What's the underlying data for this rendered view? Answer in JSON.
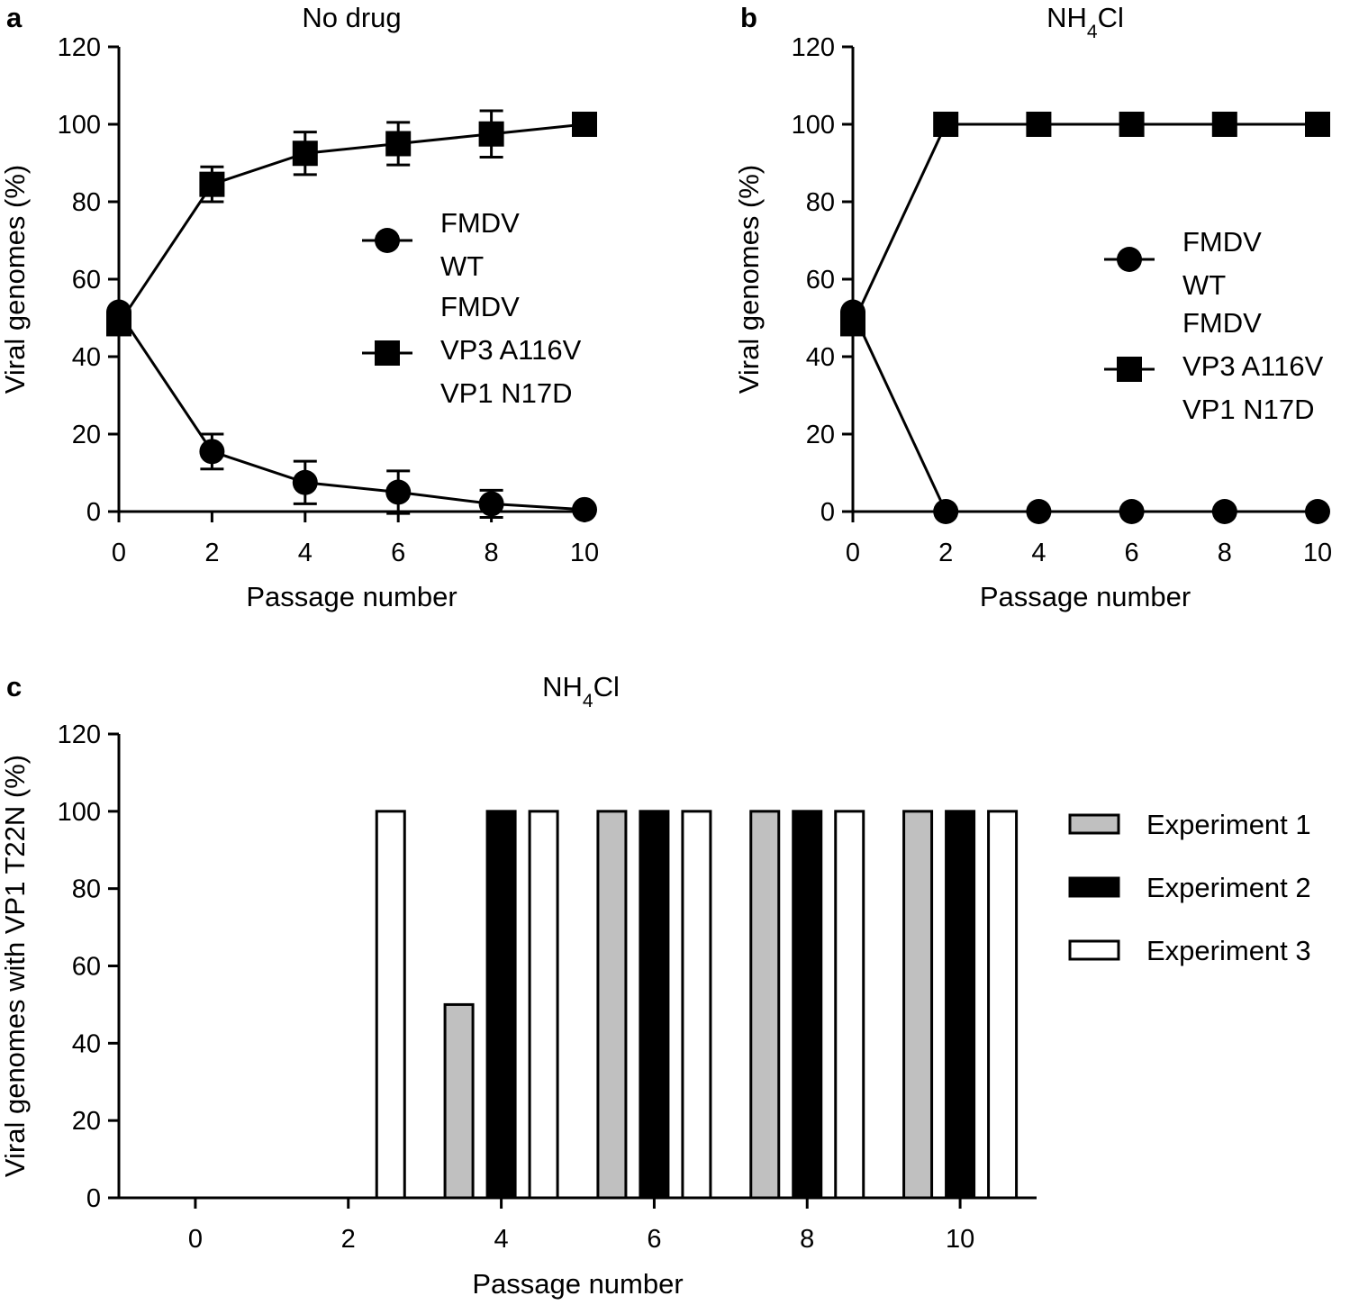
{
  "chart_data": [
    {
      "panel": "a",
      "type": "line",
      "title": "No drug",
      "xlabel": "Passage number",
      "ylabel": "Viral genomes (%)",
      "xlim": [
        0,
        10
      ],
      "ylim": [
        0,
        120
      ],
      "xticks": [
        0,
        2,
        4,
        6,
        8,
        10
      ],
      "yticks": [
        0,
        20,
        40,
        60,
        80,
        100,
        120
      ],
      "x": [
        0,
        2,
        4,
        6,
        8,
        10
      ],
      "series": [
        {
          "name": "FMDV WT",
          "legend_lines": [
            "FMDV",
            "WT"
          ],
          "marker": "circle",
          "values": [
            51.5,
            15.5,
            7.5,
            5,
            2,
            0.5
          ],
          "errors": [
            0,
            4.5,
            5.5,
            5.5,
            3.5,
            0
          ]
        },
        {
          "name": "FMDV VP3 A116V VP1 N17D",
          "legend_lines": [
            "FMDV",
            "VP3 A116V",
            "VP1 N17D"
          ],
          "marker": "square",
          "values": [
            48.5,
            84.5,
            92.5,
            95,
            97.5,
            100
          ],
          "errors": [
            0,
            4.5,
            5.5,
            5.5,
            6,
            0
          ]
        }
      ],
      "legend_position": "center-right"
    },
    {
      "panel": "b",
      "type": "line",
      "title": "NH₄Cl",
      "xlabel": "Passage number",
      "ylabel": "Viral genomes (%)",
      "xlim": [
        0,
        10
      ],
      "ylim": [
        0,
        120
      ],
      "xticks": [
        0,
        2,
        4,
        6,
        8,
        10
      ],
      "yticks": [
        0,
        20,
        40,
        60,
        80,
        100,
        120
      ],
      "x": [
        0,
        2,
        4,
        6,
        8,
        10
      ],
      "series": [
        {
          "name": "FMDV WT",
          "legend_lines": [
            "FMDV",
            "WT"
          ],
          "marker": "circle",
          "values": [
            51.5,
            0,
            0,
            0,
            0,
            0
          ],
          "errors": [
            0,
            0,
            0,
            0,
            0,
            0
          ]
        },
        {
          "name": "FMDV VP3 A116V VP1 N17D",
          "legend_lines": [
            "FMDV",
            "VP3 A116V",
            "VP1 N17D"
          ],
          "marker": "square",
          "values": [
            48.5,
            100,
            100,
            100,
            100,
            100
          ],
          "errors": [
            0,
            0,
            0,
            0,
            0,
            0
          ]
        }
      ],
      "legend_position": "center-right"
    },
    {
      "panel": "c",
      "type": "bar",
      "title": "NH₄Cl",
      "xlabel": "Passage number",
      "ylabel": "Viral genomes with VP1 T22N (%)",
      "ylim": [
        0,
        120
      ],
      "yticks": [
        0,
        20,
        40,
        60,
        80,
        100,
        120
      ],
      "categories": [
        "0",
        "2",
        "4",
        "6",
        "8",
        "10"
      ],
      "series": [
        {
          "name": "Experiment 1",
          "color": "#c0c0c0",
          "values": [
            0,
            0,
            50,
            100,
            100,
            100
          ]
        },
        {
          "name": "Experiment 2",
          "color": "#000000",
          "values": [
            0,
            0,
            100,
            100,
            100,
            100
          ]
        },
        {
          "name": "Experiment 3",
          "color": "#ffffff",
          "values": [
            0,
            100,
            100,
            100,
            100,
            100
          ]
        }
      ],
      "legend_position": "right"
    }
  ]
}
